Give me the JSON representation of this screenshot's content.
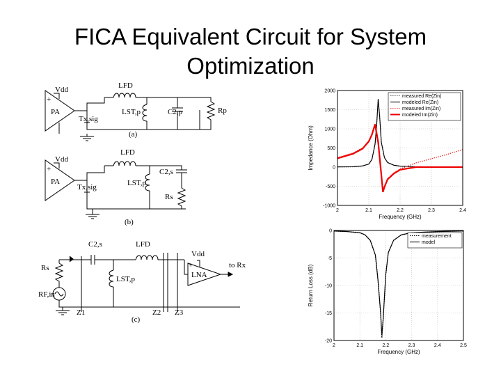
{
  "slide": {
    "title_line1": "FICA Equivalent Circuit for System",
    "title_line2": "Optimization"
  },
  "circuits": {
    "a": {
      "vdd": "Vdd",
      "plus": "+",
      "pa": "PA",
      "source": "Tx,sig",
      "lfd": "LFD",
      "lst": "LST,p",
      "c2": "C2,p",
      "rp": "Rp",
      "caption": "(a)"
    },
    "b": {
      "vdd": "Vdd",
      "plus": "+",
      "pa": "PA",
      "source": "Tx,sig",
      "lfd": "LFD",
      "lst": "LST,p",
      "c2": "C2,s",
      "rs": "Rs",
      "caption": "(b)"
    },
    "c": {
      "rs": "Rs",
      "source": "RF,in",
      "c2": "C2,s",
      "lfd": "LFD",
      "lst": "LST,p",
      "vdd": "Vdd",
      "plus": "+",
      "lna": "LNA",
      "out": "to Rx",
      "z1": "Z1",
      "z2": "Z2",
      "z3": "Z3",
      "caption": "(c)"
    }
  },
  "chart_data": [
    {
      "type": "line",
      "xlabel": "Frequency (GHz)",
      "ylabel": "Impedance (Ohm)",
      "xlim": [
        2,
        2.4
      ],
      "ylim": [
        -1000,
        2000
      ],
      "x_ticks": [
        2,
        2.1,
        2.2,
        2.3,
        2.4
      ],
      "y_ticks": [
        -1000,
        -500,
        0,
        500,
        1000,
        1500,
        2000
      ],
      "grid": true,
      "legend_position": "top-right",
      "series": [
        {
          "name": "measured Re(Zin)",
          "color": "#555555",
          "style": "dotted",
          "x": [
            2.0,
            2.05,
            2.08,
            2.1,
            2.11,
            2.12,
            2.125,
            2.13,
            2.135,
            2.14,
            2.15,
            2.16,
            2.18,
            2.2,
            2.25,
            2.3,
            2.4
          ],
          "y": [
            5,
            10,
            30,
            80,
            200,
            600,
            1100,
            1750,
            1300,
            650,
            250,
            120,
            50,
            25,
            10,
            5,
            3
          ]
        },
        {
          "name": "modeled Re(Zin)",
          "color": "#000000",
          "style": "solid",
          "x": [
            2.0,
            2.05,
            2.08,
            2.1,
            2.11,
            2.12,
            2.125,
            2.13,
            2.135,
            2.14,
            2.15,
            2.16,
            2.18,
            2.2,
            2.25,
            2.3,
            2.4
          ],
          "y": [
            5,
            10,
            30,
            80,
            200,
            600,
            1100,
            1780,
            1300,
            650,
            250,
            120,
            50,
            25,
            10,
            5,
            3
          ]
        },
        {
          "name": "measured Im(Zin)",
          "color": "#ee3333",
          "style": "dotted",
          "x": [
            2.0,
            2.05,
            2.08,
            2.1,
            2.11,
            2.12,
            2.13,
            2.14,
            2.145,
            2.15,
            2.16,
            2.18,
            2.2,
            2.25,
            2.3,
            2.35,
            2.4
          ],
          "y": [
            250,
            370,
            500,
            690,
            860,
            1060,
            600,
            -250,
            -650,
            -500,
            -300,
            -150,
            -50,
            110,
            220,
            330,
            460
          ]
        },
        {
          "name": "modeled Im(Zin)",
          "color": "#ee0000",
          "style": "solid",
          "x": [
            2.0,
            2.05,
            2.08,
            2.1,
            2.11,
            2.12,
            2.13,
            2.14,
            2.145,
            2.15,
            2.16,
            2.18,
            2.2,
            2.25,
            2.3,
            2.35,
            2.4
          ],
          "y": [
            230,
            350,
            480,
            670,
            850,
            1120,
            650,
            -200,
            -650,
            -520,
            -320,
            -170,
            -70,
            0,
            0,
            0,
            0
          ]
        }
      ]
    },
    {
      "type": "line",
      "xlabel": "Frequency (GHz)",
      "ylabel": "Return Loss (dB)",
      "xlim": [
        2,
        2.5
      ],
      "ylim": [
        -20,
        0
      ],
      "x_ticks": [
        2,
        2.1,
        2.2,
        2.3,
        2.4,
        2.5
      ],
      "y_ticks": [
        -20,
        -15,
        -10,
        -5,
        0
      ],
      "grid": true,
      "legend_position": "top-right",
      "series": [
        {
          "name": "measurement",
          "color": "#000000",
          "style": "dotted",
          "x": [
            2.0,
            2.05,
            2.1,
            2.12,
            2.14,
            2.16,
            2.17,
            2.18,
            2.185,
            2.19,
            2.2,
            2.21,
            2.23,
            2.26,
            2.3,
            2.4,
            2.5
          ],
          "y": [
            -0.1,
            -0.2,
            -0.4,
            -0.8,
            -1.8,
            -4.5,
            -9,
            -15,
            -19.5,
            -16,
            -8,
            -4,
            -1.8,
            -0.8,
            -0.4,
            -0.2,
            -0.1
          ]
        },
        {
          "name": "model",
          "color": "#000000",
          "style": "solid",
          "x": [
            2.0,
            2.05,
            2.1,
            2.12,
            2.14,
            2.16,
            2.17,
            2.18,
            2.185,
            2.19,
            2.2,
            2.21,
            2.23,
            2.26,
            2.3,
            2.4,
            2.5
          ],
          "y": [
            -0.1,
            -0.2,
            -0.4,
            -0.8,
            -1.8,
            -4.5,
            -9,
            -15,
            -19.0,
            -16,
            -8,
            -4,
            -1.8,
            -0.8,
            -0.4,
            -0.2,
            -0.1
          ]
        }
      ]
    }
  ]
}
